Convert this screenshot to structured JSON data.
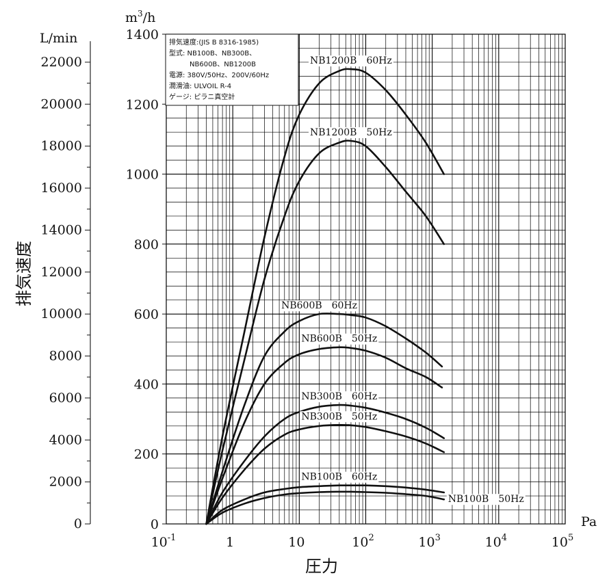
{
  "chart_data": {
    "type": "line",
    "x_scale": "log",
    "xlim": [
      0.1,
      100000
    ],
    "ylim": [
      0,
      1400
    ],
    "x_unit": "Pa",
    "y_unit_left": "L/min",
    "y_unit_right_base": "m",
    "y_unit_right_sup": "3",
    "y_unit_right_tail": "/h",
    "xlabel": "圧力",
    "ylabel": "排気速度",
    "grid": true,
    "x_ticks": [
      {
        "value": 0.1,
        "base": "10",
        "exp": "-1"
      },
      {
        "value": 1,
        "base": "1",
        "exp": ""
      },
      {
        "value": 10,
        "base": "10",
        "exp": ""
      },
      {
        "value": 100,
        "base": "10",
        "exp": "2"
      },
      {
        "value": 1000,
        "base": "10",
        "exp": "3"
      },
      {
        "value": 10000,
        "base": "10",
        "exp": "4"
      },
      {
        "value": 100000,
        "base": "10",
        "exp": "5"
      }
    ],
    "y_ticks": [
      "0",
      "200",
      "400",
      "600",
      "800",
      "1000",
      "1200",
      "1400"
    ],
    "y_ticks_left": [
      "0",
      "2000",
      "4000",
      "6000",
      "8000",
      "10000",
      "12000",
      "14000",
      "16000",
      "18000",
      "20000",
      "22000"
    ],
    "series": [
      {
        "name": "NB1200B　60Hz",
        "label": "NB1200B　60Hz",
        "x": [
          0.4,
          0.7,
          1.5,
          3,
          6,
          10,
          20,
          40,
          60,
          100,
          200,
          400,
          800,
          1500
        ],
        "y": [
          0,
          250,
          550,
          820,
          1050,
          1170,
          1260,
          1295,
          1300,
          1290,
          1240,
          1170,
          1090,
          1000
        ]
      },
      {
        "name": "NB1200B　50Hz",
        "label": "NB1200B　50Hz",
        "x": [
          0.4,
          0.7,
          1.5,
          3,
          6,
          10,
          20,
          40,
          60,
          100,
          200,
          400,
          800,
          1500
        ],
        "y": [
          0,
          210,
          470,
          700,
          880,
          980,
          1060,
          1090,
          1095,
          1080,
          1020,
          950,
          880,
          800
        ]
      },
      {
        "name": "NB600B　60Hz",
        "label": "NB600B　60Hz",
        "x": [
          0.4,
          0.7,
          1.5,
          3,
          6,
          10,
          20,
          40,
          60,
          100,
          200,
          400,
          800,
          1400
        ],
        "y": [
          0,
          150,
          340,
          480,
          550,
          580,
          600,
          600,
          597,
          590,
          565,
          530,
          490,
          450
        ]
      },
      {
        "name": "NB600B　50Hz",
        "label": "NB600B　50Hz",
        "x": [
          0.4,
          0.7,
          1.5,
          3,
          6,
          10,
          20,
          40,
          60,
          100,
          200,
          400,
          800,
          1400
        ],
        "y": [
          0,
          130,
          290,
          400,
          460,
          485,
          500,
          505,
          503,
          495,
          475,
          445,
          420,
          390
        ]
      },
      {
        "name": "NB300B　60Hz",
        "label": "NB300B　60Hz",
        "x": [
          0.4,
          0.7,
          1.5,
          3,
          6,
          10,
          20,
          40,
          60,
          100,
          200,
          400,
          800,
          1500
        ],
        "y": [
          0,
          90,
          180,
          250,
          300,
          320,
          335,
          340,
          338,
          332,
          318,
          300,
          275,
          245
        ]
      },
      {
        "name": "NB300B　50Hz",
        "label": "NB300B　50Hz",
        "x": [
          0.4,
          0.7,
          1.5,
          3,
          6,
          10,
          20,
          40,
          60,
          100,
          200,
          400,
          800,
          1500
        ],
        "y": [
          0,
          75,
          155,
          215,
          255,
          270,
          280,
          283,
          282,
          277,
          265,
          250,
          230,
          205
        ]
      },
      {
        "name": "NB100B　60Hz",
        "label": "NB100B　60Hz",
        "x": [
          0.4,
          0.7,
          1.5,
          3,
          6,
          10,
          20,
          40,
          60,
          100,
          200,
          400,
          800,
          1500
        ],
        "y": [
          0,
          40,
          70,
          90,
          100,
          105,
          108,
          110,
          110,
          110,
          108,
          104,
          98,
          90
        ]
      },
      {
        "name": "NB100B　50Hz",
        "label": "NB100B　50Hz",
        "x": [
          0.4,
          0.7,
          1.5,
          3,
          6,
          10,
          20,
          40,
          60,
          100,
          200,
          400,
          800,
          1500
        ],
        "y": [
          0,
          32,
          58,
          74,
          84,
          88,
          91,
          92,
          92,
          91,
          89,
          85,
          80,
          70
        ]
      }
    ],
    "legend_lines": [
      "排気速度:(JIS B 8316-1985)",
      "型式: NB100B、NB300B、",
      "　　　NB600B、NB1200B",
      "電源: 380V/50Hz、200V/60Hz",
      "潤滑油: ULVOIL R-4",
      "ゲージ: ピラニ真空計"
    ],
    "line_color": "#111111",
    "grid_color": "#000000",
    "background": "#ffffff"
  }
}
